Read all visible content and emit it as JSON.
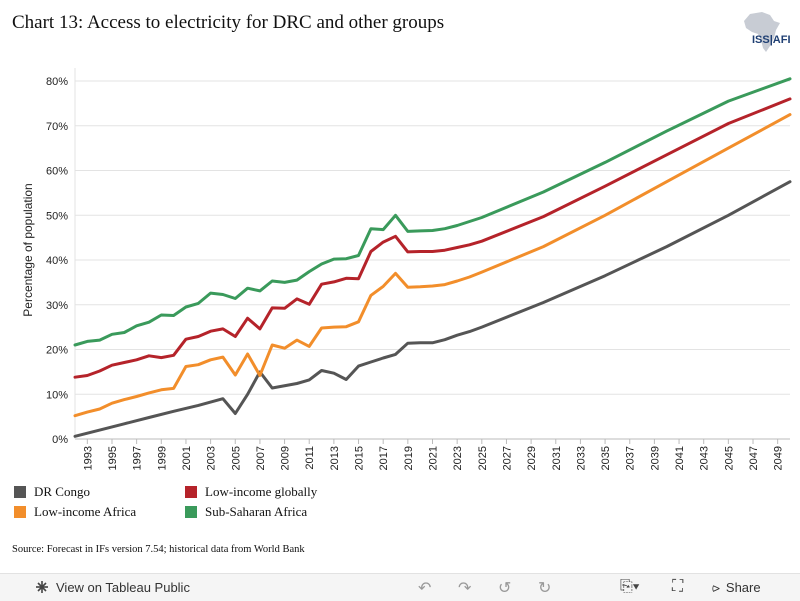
{
  "title": "Chart 13: Access to electricity for DRC and other groups",
  "logo_text": "ISS|AFI",
  "source": "Source: Forecast in IFs version 7.54; historical data from World Bank",
  "toolbar": {
    "view_label": "View on Tableau Public",
    "share_label": "Share",
    "icons": [
      "undo-icon",
      "redo-icon",
      "revert-icon",
      "refresh-icon",
      "download-icon",
      "fullscreen-icon",
      "share-icon"
    ]
  },
  "chart_data": {
    "type": "line",
    "title": "Chart 13: Access to electricity for DRC and other groups",
    "xlabel": "",
    "ylabel": "Percentage of population",
    "xlim": [
      1992,
      2050
    ],
    "ylim": [
      0,
      0.8
    ],
    "yticks": [
      "0%",
      "10%",
      "20%",
      "30%",
      "40%",
      "50%",
      "60%",
      "70%",
      "80%"
    ],
    "xticks": [
      "1993",
      "1995",
      "1997",
      "1999",
      "2001",
      "2003",
      "2005",
      "2007",
      "2009",
      "2011",
      "2013",
      "2015",
      "2017",
      "2019",
      "2021",
      "2023",
      "2025",
      "2027",
      "2029",
      "2031",
      "2033",
      "2035",
      "2037",
      "2039",
      "2041",
      "2043",
      "2045",
      "2047",
      "2049"
    ],
    "grid": true,
    "legend_position": "bottom-left",
    "series": [
      {
        "name": "DR Congo",
        "color": "#555555",
        "x": [
          1992,
          1994,
          1996,
          1998,
          2000,
          2002,
          2004,
          2005,
          2006,
          2007,
          2008,
          2010,
          2011,
          2012,
          2013,
          2014,
          2015,
          2016,
          2017,
          2018,
          2019,
          2020,
          2021,
          2022,
          2023,
          2024,
          2025,
          2030,
          2035,
          2040,
          2045,
          2050
        ],
        "y": [
          0.006,
          0.02,
          0.034,
          0.048,
          0.062,
          0.075,
          0.09,
          0.057,
          0.1,
          0.15,
          0.114,
          0.124,
          0.132,
          0.153,
          0.147,
          0.133,
          0.163,
          0.172,
          0.181,
          0.189,
          0.214,
          0.215,
          0.215,
          0.222,
          0.232,
          0.24,
          0.25,
          0.305,
          0.365,
          0.43,
          0.5,
          0.575
        ]
      },
      {
        "name": "Low-income globally",
        "color": "#b5232a",
        "x": [
          1992,
          1993,
          1994,
          1995,
          1996,
          1997,
          1998,
          1999,
          2000,
          2001,
          2002,
          2003,
          2004,
          2005,
          2006,
          2007,
          2008,
          2009,
          2010,
          2011,
          2012,
          2013,
          2014,
          2015,
          2016,
          2017,
          2018,
          2019,
          2020,
          2021,
          2022,
          2023,
          2024,
          2025,
          2030,
          2035,
          2040,
          2045,
          2050
        ],
        "y": [
          0.138,
          0.142,
          0.152,
          0.165,
          0.171,
          0.177,
          0.186,
          0.182,
          0.187,
          0.223,
          0.229,
          0.241,
          0.246,
          0.229,
          0.27,
          0.246,
          0.293,
          0.292,
          0.313,
          0.301,
          0.346,
          0.351,
          0.359,
          0.358,
          0.419,
          0.44,
          0.453,
          0.418,
          0.419,
          0.419,
          0.422,
          0.428,
          0.434,
          0.442,
          0.497,
          0.565,
          0.635,
          0.705,
          0.76
        ]
      },
      {
        "name": "Low-income Africa",
        "color": "#f28e2b",
        "x": [
          1992,
          1993,
          1994,
          1995,
          1996,
          1997,
          1998,
          1999,
          2000,
          2001,
          2002,
          2003,
          2004,
          2005,
          2006,
          2007,
          2008,
          2009,
          2010,
          2011,
          2012,
          2013,
          2014,
          2015,
          2016,
          2017,
          2018,
          2019,
          2020,
          2021,
          2022,
          2023,
          2024,
          2025,
          2030,
          2035,
          2040,
          2045,
          2050
        ],
        "y": [
          0.052,
          0.06,
          0.067,
          0.08,
          0.088,
          0.095,
          0.103,
          0.11,
          0.113,
          0.162,
          0.166,
          0.177,
          0.183,
          0.143,
          0.19,
          0.142,
          0.21,
          0.203,
          0.221,
          0.207,
          0.248,
          0.25,
          0.251,
          0.262,
          0.321,
          0.341,
          0.37,
          0.339,
          0.34,
          0.342,
          0.345,
          0.353,
          0.362,
          0.373,
          0.43,
          0.5,
          0.575,
          0.65,
          0.725
        ]
      },
      {
        "name": "Sub-Saharan Africa",
        "color": "#3a9a5b",
        "x": [
          1992,
          1993,
          1994,
          1995,
          1996,
          1997,
          1998,
          1999,
          2000,
          2001,
          2002,
          2003,
          2004,
          2005,
          2006,
          2007,
          2008,
          2009,
          2010,
          2011,
          2012,
          2013,
          2014,
          2015,
          2016,
          2017,
          2018,
          2019,
          2020,
          2021,
          2022,
          2023,
          2024,
          2025,
          2030,
          2035,
          2040,
          2045,
          2050
        ],
        "y": [
          0.21,
          0.218,
          0.221,
          0.234,
          0.238,
          0.253,
          0.261,
          0.277,
          0.276,
          0.295,
          0.303,
          0.326,
          0.323,
          0.314,
          0.337,
          0.331,
          0.353,
          0.35,
          0.355,
          0.374,
          0.391,
          0.402,
          0.403,
          0.41,
          0.47,
          0.468,
          0.5,
          0.464,
          0.465,
          0.466,
          0.47,
          0.477,
          0.486,
          0.495,
          0.552,
          0.618,
          0.688,
          0.755,
          0.805
        ]
      }
    ]
  }
}
